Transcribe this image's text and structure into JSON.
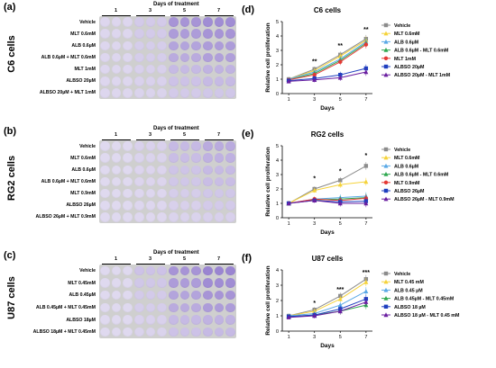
{
  "panels": [
    {
      "label": "(a)",
      "cell_label": "C6 cells",
      "days_title": "Days of treatment",
      "days": [
        "1",
        "3",
        "5",
        "7"
      ],
      "rows": [
        "Vehicle",
        "MLT 0.6mM",
        "ALB 0.6µM",
        "ALB 0.6µM + MLT 0.6mM",
        "MLT 1mM",
        "ALBSO 20µM",
        "ALBSO 20µM + MLT 1mM"
      ],
      "intensity": [
        [
          0.12,
          0.2,
          0.55,
          0.6
        ],
        [
          0.12,
          0.2,
          0.5,
          0.55
        ],
        [
          0.12,
          0.18,
          0.45,
          0.5
        ],
        [
          0.12,
          0.18,
          0.4,
          0.48
        ],
        [
          0.12,
          0.16,
          0.3,
          0.35
        ],
        [
          0.12,
          0.15,
          0.25,
          0.3
        ],
        [
          0.12,
          0.14,
          0.2,
          0.22
        ]
      ]
    },
    {
      "label": "(b)",
      "cell_label": "RG2 cells",
      "days_title": "Days of treatment",
      "days": [
        "1",
        "3",
        "5",
        "7"
      ],
      "rows": [
        "Vehicle",
        "MLT 0.6mM",
        "ALB 0.6µM",
        "ALB 0.6µM + MLT 0.6mM",
        "MLT 0.9mM",
        "ALBSO 26µM",
        "ALBSO 26µM + MLT 0.9mM"
      ],
      "intensity": [
        [
          0.1,
          0.15,
          0.3,
          0.4
        ],
        [
          0.1,
          0.14,
          0.28,
          0.36
        ],
        [
          0.1,
          0.13,
          0.24,
          0.3
        ],
        [
          0.1,
          0.13,
          0.22,
          0.28
        ],
        [
          0.1,
          0.12,
          0.18,
          0.22
        ],
        [
          0.1,
          0.12,
          0.16,
          0.2
        ],
        [
          0.1,
          0.11,
          0.14,
          0.16
        ]
      ]
    },
    {
      "label": "(c)",
      "cell_label": "U87 cells",
      "days_title": "Days of treatment",
      "days": [
        "1",
        "3",
        "5",
        "7"
      ],
      "rows": [
        "Vehicle",
        "MLT 0.45mM",
        "ALB 0.45µM",
        "ALB 0.45µM + MLT 0.45mM",
        "ALBSO 18µM",
        "ALBSO 18µM + MLT 0.45mM"
      ],
      "intensity": [
        [
          0.1,
          0.25,
          0.55,
          0.65
        ],
        [
          0.1,
          0.22,
          0.5,
          0.6
        ],
        [
          0.1,
          0.2,
          0.45,
          0.55
        ],
        [
          0.1,
          0.18,
          0.4,
          0.5
        ],
        [
          0.1,
          0.15,
          0.3,
          0.35
        ],
        [
          0.1,
          0.14,
          0.25,
          0.3
        ]
      ]
    }
  ],
  "chart_data": [
    {
      "type": "line",
      "label": "(d)",
      "title": "C6 cells",
      "xlabel": "Days",
      "ylabel": "Relative cell proliferation",
      "x": [
        1,
        3,
        5,
        7
      ],
      "ylim": [
        0,
        5
      ],
      "yticks": [
        0,
        1,
        2,
        3,
        4,
        5
      ],
      "annotations": [
        {
          "x": 3,
          "text": "**",
          "y": 2.1
        },
        {
          "x": 5,
          "text": "**",
          "y": 3.2
        },
        {
          "x": 7,
          "text": "**",
          "y": 4.3
        }
      ],
      "series": [
        {
          "name": "Vehicle",
          "color": "#8c8c8c",
          "marker": "square",
          "values": [
            1.0,
            1.7,
            2.7,
            3.8
          ]
        },
        {
          "name": "MLT 0.6mM",
          "color": "#f5d33a",
          "marker": "triangle",
          "values": [
            1.0,
            1.6,
            2.6,
            3.7
          ]
        },
        {
          "name": "ALB 0.6µM",
          "color": "#5aa9e6",
          "marker": "triangle",
          "values": [
            1.0,
            1.5,
            2.4,
            3.6
          ]
        },
        {
          "name": "ALB 0.6µM - MLT 0.6mM",
          "color": "#2fa84f",
          "marker": "triangle",
          "values": [
            0.95,
            1.4,
            2.3,
            3.5
          ]
        },
        {
          "name": "MLT 1mM",
          "color": "#e53935",
          "marker": "circle",
          "values": [
            0.95,
            1.3,
            2.2,
            3.4
          ]
        },
        {
          "name": "ALBSO 20µM",
          "color": "#1f3fbf",
          "marker": "square",
          "values": [
            0.9,
            1.05,
            1.3,
            1.75
          ]
        },
        {
          "name": "ALBSO 20µM - MLT 1mM",
          "color": "#6a1fa0",
          "marker": "triangle",
          "values": [
            0.85,
            0.95,
            1.1,
            1.5
          ]
        }
      ]
    },
    {
      "type": "line",
      "label": "(e)",
      "title": "RG2 cells",
      "xlabel": "Days",
      "ylabel": "Relative cell proliferation",
      "x": [
        1,
        3,
        5,
        7
      ],
      "ylim": [
        0,
        5
      ],
      "yticks": [
        0,
        1,
        2,
        3,
        4,
        5
      ],
      "annotations": [
        {
          "x": 3,
          "text": "*",
          "y": 2.6
        },
        {
          "x": 5,
          "text": "*",
          "y": 3.1
        },
        {
          "x": 7,
          "text": "*",
          "y": 4.2
        }
      ],
      "series": [
        {
          "name": "Vehicle",
          "color": "#8c8c8c",
          "marker": "square",
          "values": [
            1.0,
            2.0,
            2.6,
            3.6
          ]
        },
        {
          "name": "MLT 0.6mM",
          "color": "#f5d33a",
          "marker": "triangle",
          "values": [
            1.0,
            1.9,
            2.3,
            2.5
          ]
        },
        {
          "name": "ALB 0.6µM",
          "color": "#5aa9e6",
          "marker": "triangle",
          "values": [
            1.0,
            1.3,
            1.4,
            1.5
          ]
        },
        {
          "name": "ALB 0.6µM - MLT 0.6mM",
          "color": "#2fa84f",
          "marker": "triangle",
          "values": [
            1.0,
            1.25,
            1.3,
            1.4
          ]
        },
        {
          "name": "MLT 0.9mM",
          "color": "#e53935",
          "marker": "circle",
          "values": [
            1.0,
            1.3,
            1.2,
            1.35
          ]
        },
        {
          "name": "ALBSO 26µM",
          "color": "#1f3fbf",
          "marker": "square",
          "values": [
            1.0,
            1.2,
            1.1,
            1.15
          ]
        },
        {
          "name": "ALBSO 26µM - MLT 0.9mM",
          "color": "#6a1fa0",
          "marker": "triangle",
          "values": [
            1.0,
            1.2,
            1.0,
            1.0
          ]
        }
      ]
    },
    {
      "type": "line",
      "label": "(f)",
      "title": "U87 cells",
      "xlabel": "Days",
      "ylabel": "Relative cell proliferation",
      "x": [
        1,
        3,
        5,
        7
      ],
      "ylim": [
        0,
        4
      ],
      "yticks": [
        0,
        1,
        2,
        3,
        4
      ],
      "annotations": [
        {
          "x": 3,
          "text": "*",
          "y": 1.7
        },
        {
          "x": 5,
          "text": "***",
          "y": 2.6
        },
        {
          "x": 7,
          "text": "***",
          "y": 3.7
        }
      ],
      "series": [
        {
          "name": "Vehicle",
          "color": "#8c8c8c",
          "marker": "square",
          "values": [
            1.0,
            1.4,
            2.3,
            3.4
          ]
        },
        {
          "name": "MLT 0.45 mM",
          "color": "#f5d33a",
          "marker": "triangle",
          "values": [
            1.0,
            1.3,
            2.1,
            3.2
          ]
        },
        {
          "name": "ALB 0.45 µM",
          "color": "#5aa9e6",
          "marker": "triangle",
          "values": [
            1.0,
            1.15,
            1.7,
            2.6
          ]
        },
        {
          "name": "ALB 0.45µM - MLT 0.45mM",
          "color": "#2fa84f",
          "marker": "triangle",
          "values": [
            0.95,
            1.05,
            1.3,
            1.7
          ]
        },
        {
          "name": "ALBSO 18 µM",
          "color": "#1f3fbf",
          "marker": "square",
          "values": [
            0.95,
            1.05,
            1.45,
            2.1
          ]
        },
        {
          "name": "ALBSO 18 µM - MLT 0.45 mM",
          "color": "#6a1fa0",
          "marker": "triangle",
          "values": [
            0.9,
            1.0,
            1.3,
            1.9
          ]
        }
      ]
    }
  ]
}
